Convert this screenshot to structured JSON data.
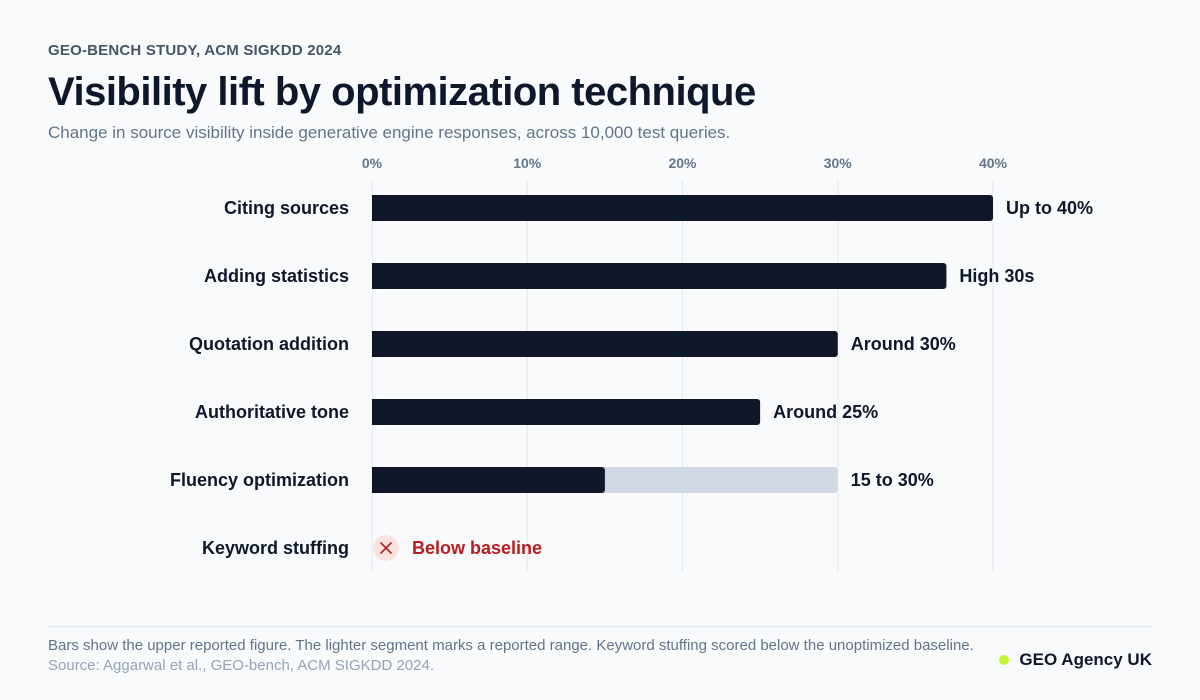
{
  "header": {
    "eyebrow": "GEO-BENCH STUDY, ACM SIGKDD 2024",
    "title": "Visibility lift by optimization technique",
    "subtitle": "Change in source visibility inside generative engine responses, across 10,000 test queries."
  },
  "footer": {
    "note": "Bars show the upper reported figure. The lighter segment marks a reported range. Keyword stuffing scored below the unoptimized baseline.",
    "source": "Source: Aggarwal et al., GEO-bench, ACM SIGKDD 2024.",
    "brand": "GEO Agency UK"
  },
  "colors": {
    "bar": "#101828",
    "range": "#cfd8e3",
    "grid": "#e2e8f0",
    "axis_text": "#64748b",
    "negative": "#b91c1c",
    "negative_bg": "#fde2e2",
    "brand_dot": "#c6f432"
  },
  "chart_data": {
    "type": "bar",
    "orientation": "horizontal",
    "x_axis": {
      "min": 0,
      "max": 40,
      "ticks": [
        0,
        10,
        20,
        30,
        40
      ],
      "tick_labels": [
        "0%",
        "10%",
        "20%",
        "30%",
        "40%"
      ],
      "position": "top"
    },
    "grid": true,
    "categories": [
      "Citing sources",
      "Adding statistics",
      "Quotation addition",
      "Authoritative tone",
      "Fluency optimization",
      "Keyword stuffing"
    ],
    "values": [
      40,
      37,
      30,
      25,
      30,
      null
    ],
    "range_low": [
      null,
      null,
      null,
      null,
      15,
      null
    ],
    "labels": [
      "Up to 40%",
      "High 30s",
      "Around 30%",
      "Around 25%",
      "15 to 30%",
      "Below baseline"
    ],
    "negative": [
      false,
      false,
      false,
      false,
      false,
      true
    ],
    "negative_icon": "close-icon"
  }
}
